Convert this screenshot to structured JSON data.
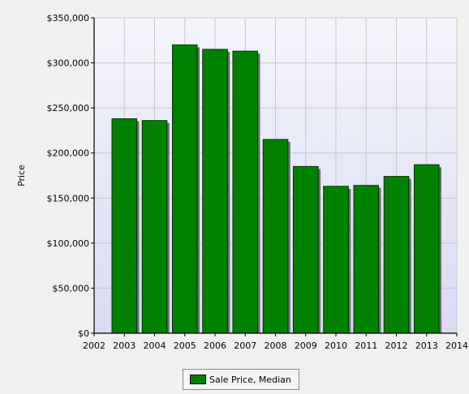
{
  "chart_data": {
    "type": "bar",
    "title": "",
    "ylabel": "Price",
    "xlabel": "",
    "x_ticks": [
      "2002",
      "2003",
      "2004",
      "2005",
      "2006",
      "2007",
      "2008",
      "2009",
      "2010",
      "2011",
      "2012",
      "2013",
      "2014"
    ],
    "y_ticks": [
      "$0",
      "$50,000",
      "$100,000",
      "$150,000",
      "$200,000",
      "$250,000",
      "$300,000",
      "$350,000"
    ],
    "xlim": [
      2002,
      2014
    ],
    "ylim": [
      0,
      350000
    ],
    "grid": true,
    "legend_position": "bottom",
    "series": [
      {
        "name": "Sale Price, Median",
        "color": "#008000",
        "x": [
          2003,
          2004,
          2005,
          2006,
          2007,
          2008,
          2009,
          2010,
          2011,
          2012,
          2013
        ],
        "values": [
          238000,
          236000,
          320000,
          315000,
          313000,
          215000,
          185000,
          163000,
          164000,
          174000,
          187000
        ]
      }
    ]
  },
  "colors": {
    "plot_bg_top": "#f4f4fb",
    "plot_bg_bottom": "#d9dbf4",
    "grid": "#c8c8c8",
    "bar": "#008000",
    "bar_edge": "#003000",
    "shadow": "#6e6e6e"
  }
}
